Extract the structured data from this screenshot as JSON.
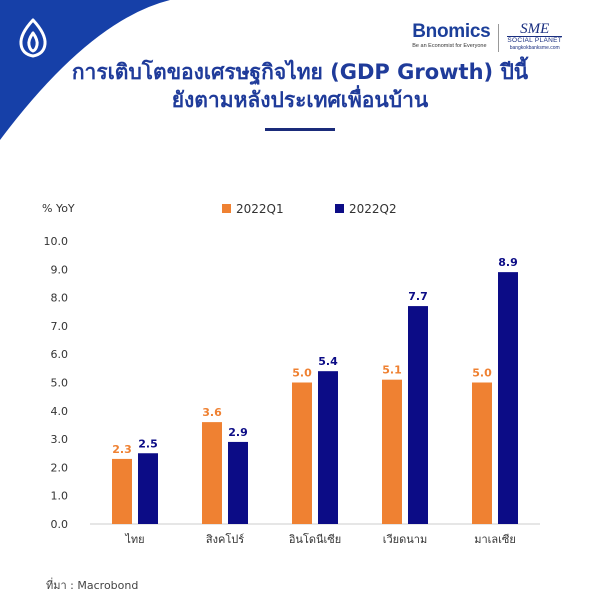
{
  "brand": {
    "bnomics": "Bnomics",
    "bnomics_tagline": "Be an Economist for Everyone",
    "sme": "SME",
    "sme_sub": "SOCIAL PLANET",
    "sme_url": "bangkokbanksme.com"
  },
  "title": {
    "line1": "การเติบโตของเศรษฐกิจไทย (GDP Growth) ปีนี้",
    "line2": "ยังตามหลังประเทศเพื่อนบ้าน"
  },
  "colors": {
    "q1": "#ef8132",
    "q2": "#0c0c86",
    "title": "#1f3b9a",
    "corner": "#1640a8"
  },
  "chart_data": {
    "type": "bar",
    "ylabel": "% YoY",
    "ylim": [
      0,
      10
    ],
    "yticks": [
      "0.0",
      "1.0",
      "2.0",
      "3.0",
      "4.0",
      "5.0",
      "6.0",
      "7.0",
      "8.0",
      "9.0",
      "10.0"
    ],
    "categories": [
      "ไทย",
      "สิงคโปร์",
      "อินโดนีเซีย",
      "เวียดนาม",
      "มาเลเซีย"
    ],
    "series": [
      {
        "name": "2022Q1",
        "values": [
          2.3,
          3.6,
          5.0,
          5.1,
          5.0
        ],
        "labels": [
          "2.3",
          "3.6",
          "5.0",
          "5.1",
          "5.0"
        ]
      },
      {
        "name": "2022Q2",
        "values": [
          2.5,
          2.9,
          5.4,
          7.7,
          8.9
        ],
        "labels": [
          "2.5",
          "2.9",
          "5.4",
          "7.7",
          "8.9"
        ]
      }
    ],
    "legend": "top-center",
    "grid": false
  },
  "footer": {
    "source": "ที่มา : Macrobond"
  }
}
